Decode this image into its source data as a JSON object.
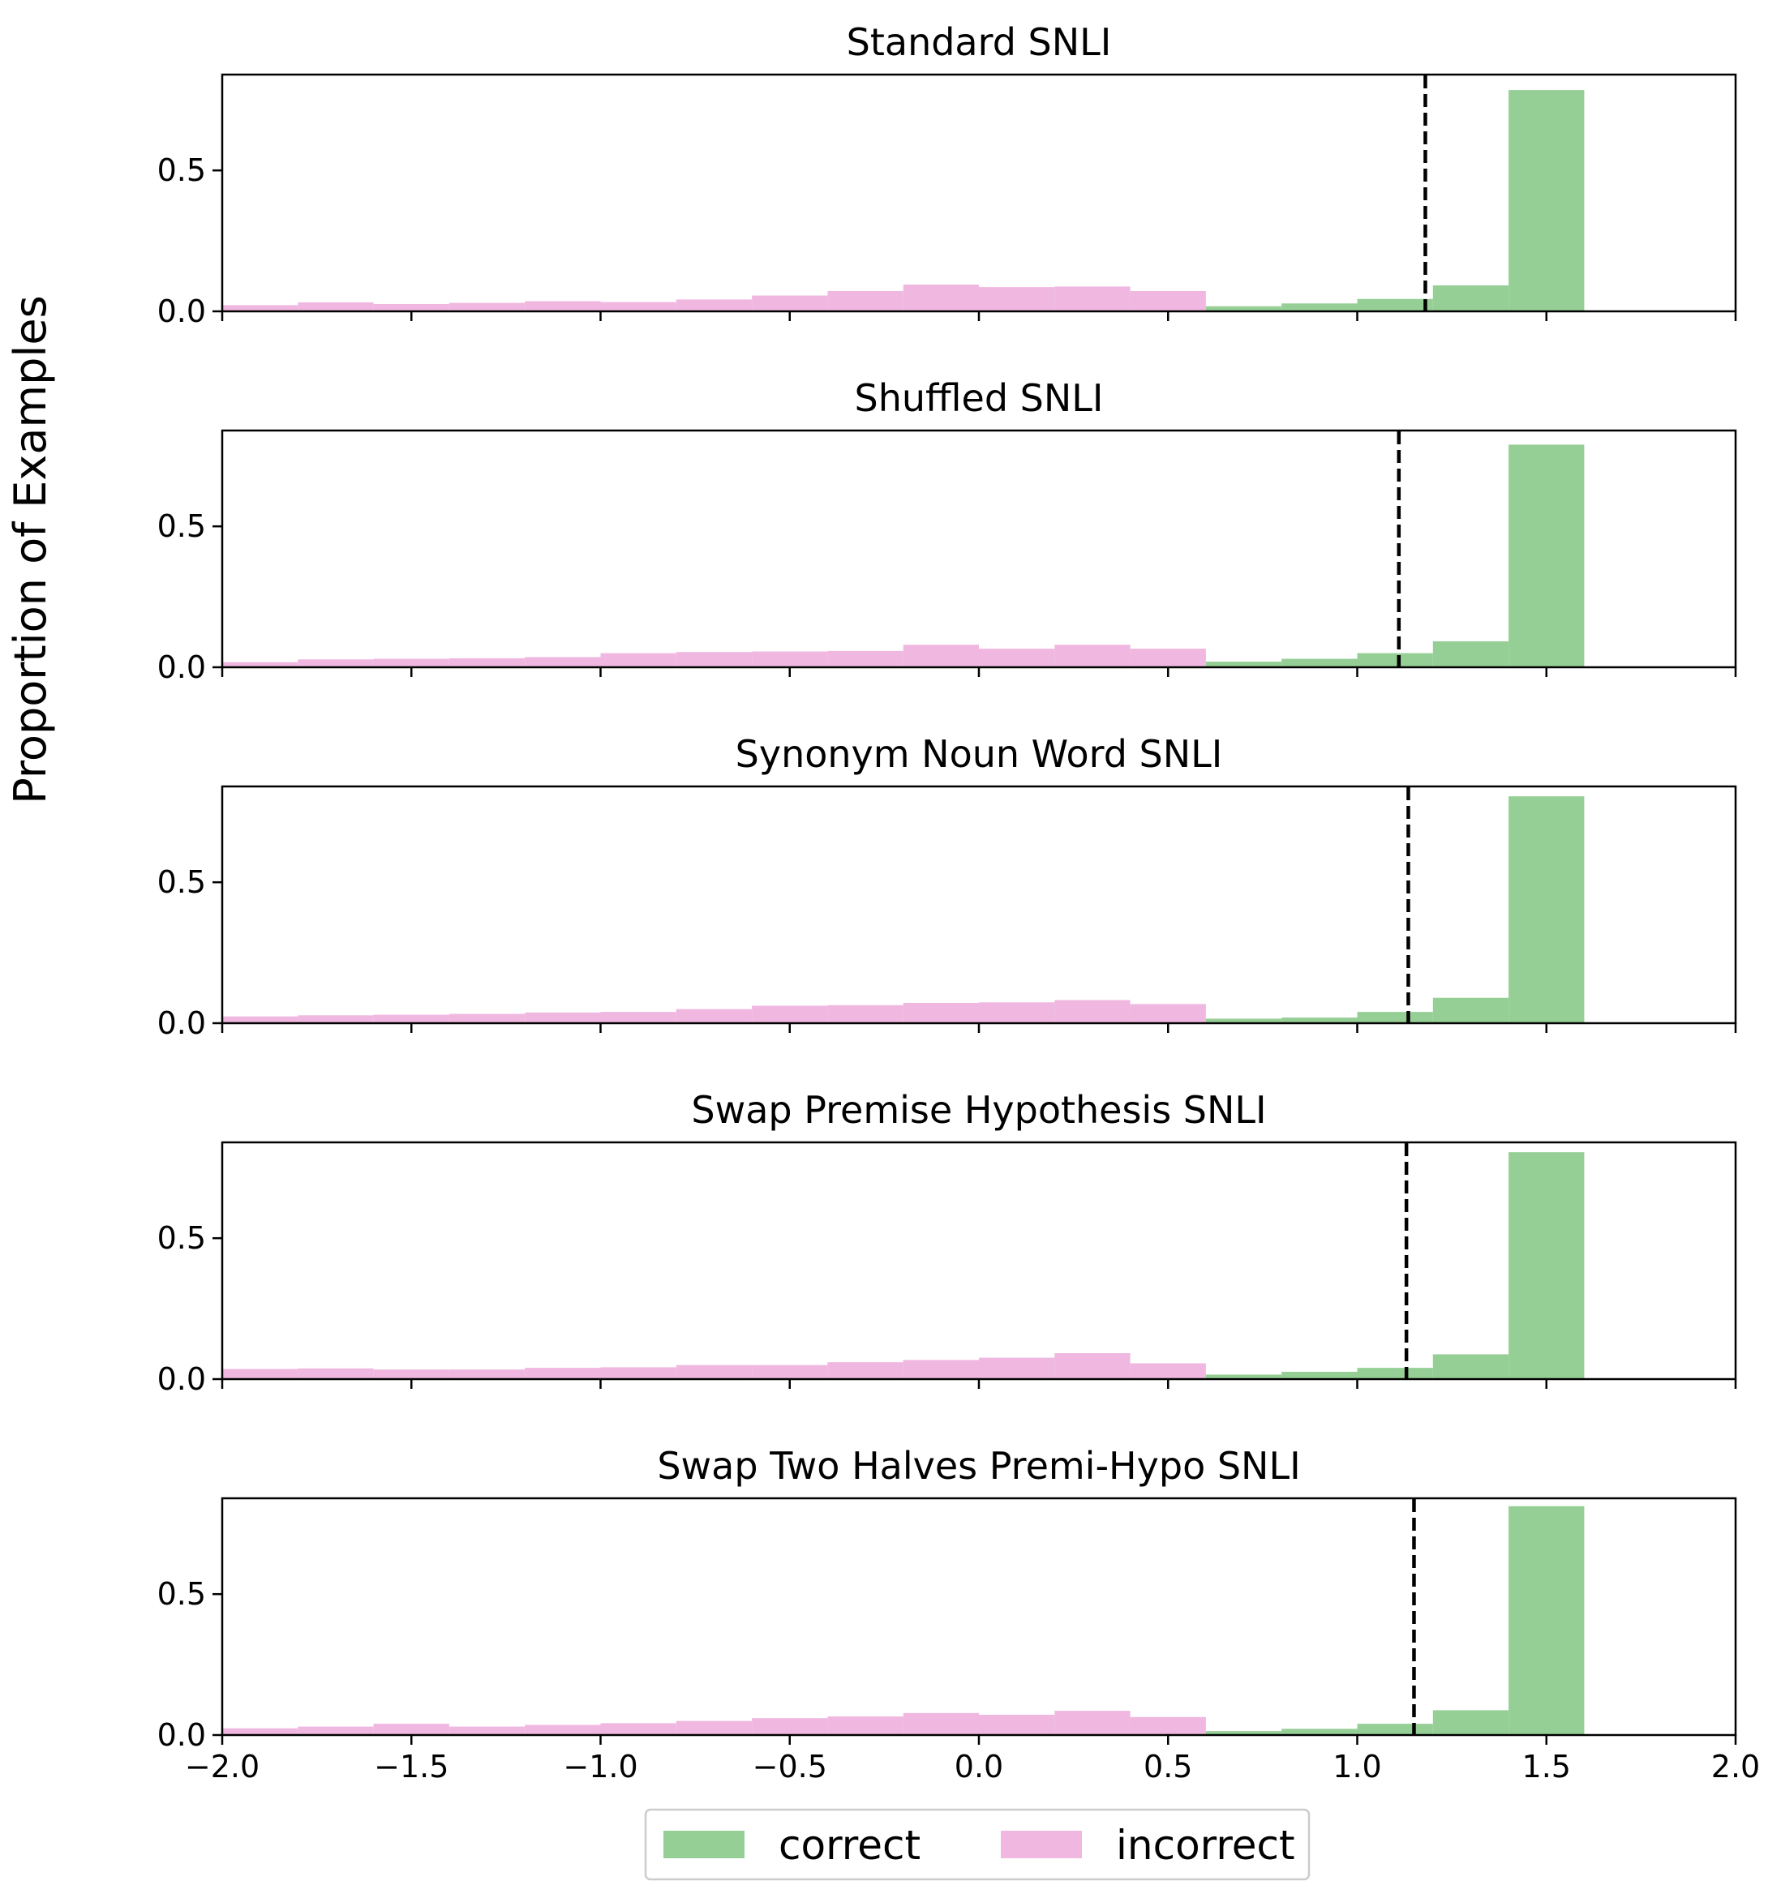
{
  "chart_data": {
    "type": "bar",
    "subtype": "histogram",
    "ylabel": "Proportion of Examples",
    "xlabel": "",
    "xlim": [
      -2.0,
      2.0
    ],
    "ylim": [
      0,
      0.84
    ],
    "xticks": [
      -2.0,
      -1.5,
      -1.0,
      -0.5,
      0.0,
      0.5,
      1.0,
      1.5,
      2.0
    ],
    "xtick_labels": [
      "−2.0",
      "−1.5",
      "−1.0",
      "−0.5",
      "0.0",
      "0.5",
      "1.0",
      "1.5",
      "2.0"
    ],
    "yticks": [
      0.0,
      0.5
    ],
    "ytick_labels": [
      "0.0",
      "0.5"
    ],
    "bin_width": 0.2,
    "grid": false,
    "legend": {
      "placement": "bottom-center",
      "ncol": 2
    },
    "series_colors": {
      "correct": "#96cf96",
      "incorrect": "#f0b8e0"
    },
    "threshold_line": {
      "style": "dashed",
      "color": "#000000"
    },
    "series_names": [
      "correct",
      "incorrect"
    ],
    "panels": [
      {
        "title": "Standard SNLI",
        "threshold": 1.18,
        "incorrect": {
          "bin_starts": [
            -2.0,
            -1.8,
            -1.6,
            -1.4,
            -1.2,
            -1.0,
            -0.8,
            -0.6,
            -0.4,
            -0.2,
            0.0,
            0.2,
            0.4
          ],
          "values": [
            0.022,
            0.032,
            0.026,
            0.03,
            0.036,
            0.033,
            0.042,
            0.056,
            0.072,
            0.095,
            0.086,
            0.088,
            0.072
          ]
        },
        "correct": {
          "bin_starts": [
            0.6,
            0.8,
            1.0,
            1.2,
            1.4
          ],
          "values": [
            0.018,
            0.028,
            0.044,
            0.092,
            0.785
          ]
        }
      },
      {
        "title": "Shuffled SNLI",
        "threshold": 1.11,
        "incorrect": {
          "bin_starts": [
            -2.0,
            -1.8,
            -1.6,
            -1.4,
            -1.2,
            -1.0,
            -0.8,
            -0.6,
            -0.4,
            -0.2,
            0.0,
            0.2,
            0.4
          ],
          "values": [
            0.018,
            0.028,
            0.03,
            0.032,
            0.036,
            0.05,
            0.054,
            0.056,
            0.058,
            0.08,
            0.066,
            0.08,
            0.066
          ]
        },
        "correct": {
          "bin_starts": [
            0.6,
            0.8,
            1.0,
            1.2,
            1.4
          ],
          "values": [
            0.02,
            0.03,
            0.05,
            0.092,
            0.79
          ]
        }
      },
      {
        "title": "Synonym Noun Word SNLI",
        "threshold": 1.135,
        "incorrect": {
          "bin_starts": [
            -2.0,
            -1.8,
            -1.6,
            -1.4,
            -1.2,
            -1.0,
            -0.8,
            -0.6,
            -0.4,
            -0.2,
            0.0,
            0.2,
            0.4
          ],
          "values": [
            0.024,
            0.028,
            0.03,
            0.033,
            0.038,
            0.04,
            0.05,
            0.062,
            0.064,
            0.072,
            0.074,
            0.082,
            0.068
          ]
        },
        "correct": {
          "bin_starts": [
            0.6,
            0.8,
            1.0,
            1.2,
            1.4
          ],
          "values": [
            0.016,
            0.02,
            0.04,
            0.09,
            0.805
          ]
        }
      },
      {
        "title": "Swap Premise Hypothesis SNLI",
        "threshold": 1.13,
        "incorrect": {
          "bin_starts": [
            -2.0,
            -1.8,
            -1.6,
            -1.4,
            -1.2,
            -1.0,
            -0.8,
            -0.6,
            -0.4,
            -0.2,
            0.0,
            0.2,
            0.4
          ],
          "values": [
            0.036,
            0.038,
            0.034,
            0.034,
            0.04,
            0.042,
            0.05,
            0.05,
            0.06,
            0.068,
            0.076,
            0.092,
            0.056
          ]
        },
        "correct": {
          "bin_starts": [
            0.6,
            0.8,
            1.0,
            1.2,
            1.4
          ],
          "values": [
            0.016,
            0.026,
            0.04,
            0.088,
            0.805
          ]
        }
      },
      {
        "title": "Swap Two Halves Premi-Hypo SNLI",
        "threshold": 1.15,
        "incorrect": {
          "bin_starts": [
            -2.0,
            -1.8,
            -1.6,
            -1.4,
            -1.2,
            -1.0,
            -0.8,
            -0.6,
            -0.4,
            -0.2,
            0.0,
            0.2,
            0.4
          ],
          "values": [
            0.024,
            0.03,
            0.04,
            0.03,
            0.036,
            0.042,
            0.05,
            0.06,
            0.066,
            0.078,
            0.072,
            0.086,
            0.064
          ]
        },
        "correct": {
          "bin_starts": [
            0.6,
            0.8,
            1.0,
            1.2,
            1.4
          ],
          "values": [
            0.014,
            0.022,
            0.04,
            0.088,
            0.812
          ]
        }
      }
    ]
  }
}
